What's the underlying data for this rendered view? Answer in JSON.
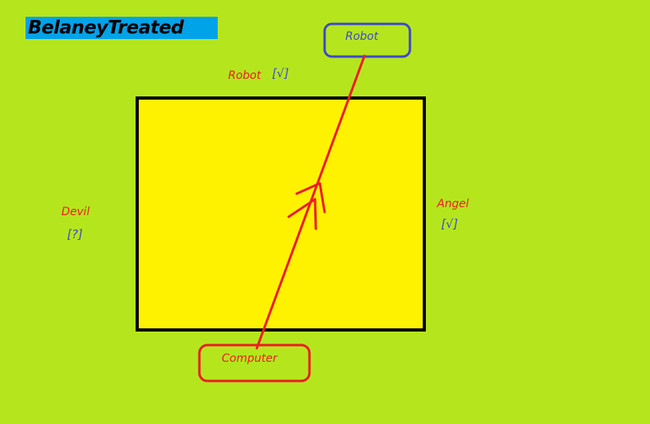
{
  "title": "BelaneyTreated",
  "colors": {
    "background": "#b5e61d",
    "title_bg": "#00a2e8",
    "square_fill": "#fff200",
    "red": "#ed1c24",
    "blue": "#3f48cc"
  },
  "diagram": {
    "top_label": "Robot",
    "top_mark": "[√]",
    "left_label": "Devil",
    "left_mark": "[?]",
    "right_label": "Angel",
    "right_mark": "[√]",
    "start_node": "Computer",
    "end_node": "Robot"
  }
}
